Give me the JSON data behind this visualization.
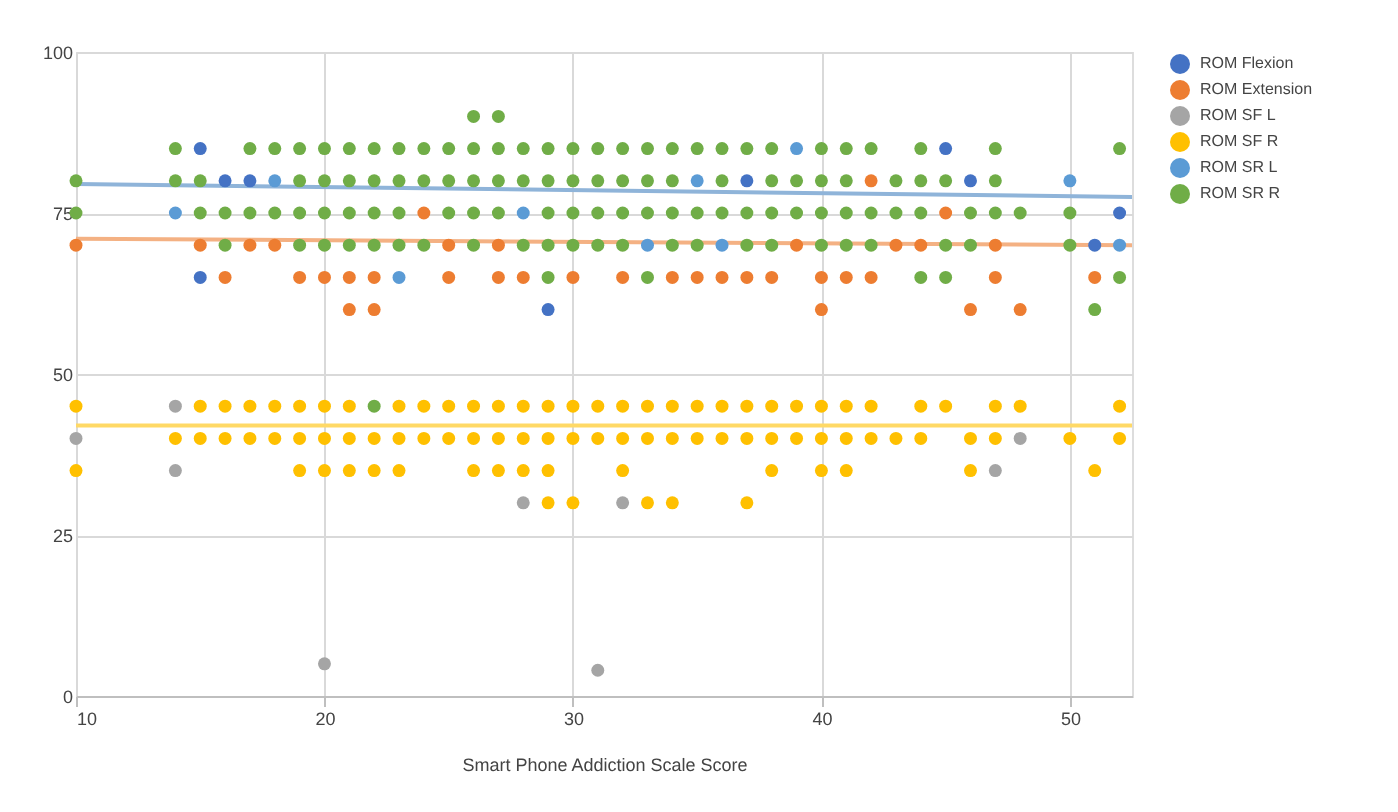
{
  "chart_data": {
    "type": "scatter",
    "xlabel": "Smart Phone Addiction Scale Score",
    "xlim": [
      10,
      52.5
    ],
    "xticks": [
      10,
      20,
      30,
      40,
      50
    ],
    "ylim": [
      0,
      100
    ],
    "yticks": [
      0,
      25,
      50,
      75,
      100
    ],
    "grid": true,
    "legend": "top right",
    "marker": "circle",
    "series": [
      {
        "name": "ROM Flexion",
        "color": "#4472c4",
        "x": [
          15,
          16,
          17,
          15,
          29,
          45,
          37,
          46,
          52,
          51
        ],
        "values": [
          85,
          80,
          80,
          65,
          60,
          85,
          80,
          80,
          75,
          70
        ]
      },
      {
        "name": "ROM Extension",
        "color": "#ed7d31",
        "x": [
          10,
          24,
          15,
          17,
          18,
          25,
          27,
          16,
          19,
          20,
          21,
          22,
          25,
          27,
          28,
          30,
          32,
          34,
          35,
          21,
          22,
          42,
          45,
          39,
          43,
          44,
          47,
          36,
          37,
          38,
          40,
          41,
          42,
          47,
          51,
          40,
          46,
          48
        ],
        "values": [
          70,
          75,
          70,
          70,
          70,
          70,
          70,
          65,
          65,
          65,
          65,
          65,
          65,
          65,
          65,
          65,
          65,
          65,
          65,
          60,
          60,
          80,
          75,
          70,
          70,
          70,
          70,
          65,
          65,
          65,
          65,
          65,
          65,
          65,
          65,
          60,
          60,
          60
        ]
      },
      {
        "name": "ROM SF L",
        "color": "#a5a5a5",
        "x": [
          14,
          10,
          14,
          28,
          32,
          20,
          31,
          48,
          47
        ],
        "values": [
          45,
          40,
          35,
          30,
          30,
          5,
          4,
          40,
          35
        ]
      },
      {
        "name": "ROM SF R",
        "color": "#ffc000",
        "x": [
          10,
          15,
          16,
          17,
          18,
          19,
          20,
          21,
          23,
          24,
          25,
          26,
          27,
          28,
          29,
          30,
          31,
          32,
          33,
          34,
          35,
          36,
          37,
          38,
          39,
          40,
          41,
          42,
          44,
          45,
          47,
          48,
          52,
          14,
          15,
          16,
          17,
          18,
          19,
          20,
          21,
          22,
          23,
          24,
          25,
          26,
          27,
          28,
          29,
          30,
          31,
          32,
          33,
          34,
          35,
          36,
          37,
          38,
          39,
          40,
          41,
          42,
          43,
          44,
          46,
          47,
          50,
          52,
          10,
          19,
          20,
          21,
          22,
          23,
          26,
          27,
          28,
          29,
          32,
          38,
          40,
          41,
          46,
          51,
          29,
          30,
          33,
          34,
          37
        ],
        "values": [
          45,
          45,
          45,
          45,
          45,
          45,
          45,
          45,
          45,
          45,
          45,
          45,
          45,
          45,
          45,
          45,
          45,
          45,
          45,
          45,
          45,
          45,
          45,
          45,
          45,
          45,
          45,
          45,
          45,
          45,
          45,
          45,
          45,
          40,
          40,
          40,
          40,
          40,
          40,
          40,
          40,
          40,
          40,
          40,
          40,
          40,
          40,
          40,
          40,
          40,
          40,
          40,
          40,
          40,
          40,
          40,
          40,
          40,
          40,
          40,
          40,
          40,
          40,
          40,
          40,
          40,
          40,
          40,
          35,
          35,
          35,
          35,
          35,
          35,
          35,
          35,
          35,
          35,
          35,
          35,
          35,
          35,
          35,
          35,
          30,
          30,
          30,
          30,
          30
        ]
      },
      {
        "name": "ROM SR L",
        "color": "#5b9bd5",
        "x": [
          18,
          35,
          50,
          14,
          28,
          33,
          23,
          39,
          36,
          52
        ],
        "values": [
          80,
          80,
          80,
          75,
          75,
          70,
          65,
          85,
          70,
          70
        ]
      },
      {
        "name": "ROM SR R",
        "color": "#70ad47",
        "x": [
          26,
          27,
          14,
          17,
          18,
          19,
          20,
          21,
          22,
          23,
          24,
          25,
          26,
          27,
          28,
          29,
          30,
          31,
          32,
          33,
          34,
          35,
          36,
          37,
          38,
          40,
          41,
          42,
          44,
          47,
          52,
          10,
          14,
          15,
          19,
          20,
          21,
          22,
          23,
          24,
          25,
          26,
          27,
          28,
          29,
          30,
          31,
          32,
          33,
          34,
          36,
          38,
          39,
          40,
          41,
          43,
          44,
          45,
          47,
          10,
          15,
          16,
          17,
          18,
          19,
          20,
          21,
          22,
          23,
          25,
          26,
          27,
          29,
          30,
          31,
          32,
          33,
          34,
          35,
          36,
          37,
          38,
          39,
          40,
          41,
          42,
          43,
          44,
          46,
          47,
          48,
          50,
          16,
          19,
          20,
          21,
          22,
          23,
          24,
          26,
          28,
          29,
          30,
          31,
          32,
          34,
          35,
          37,
          38,
          40,
          41,
          42,
          45,
          46,
          50,
          29,
          33,
          44,
          45,
          52,
          51,
          22
        ],
        "values": [
          90,
          90,
          85,
          85,
          85,
          85,
          85,
          85,
          85,
          85,
          85,
          85,
          85,
          85,
          85,
          85,
          85,
          85,
          85,
          85,
          85,
          85,
          85,
          85,
          85,
          85,
          85,
          85,
          85,
          85,
          85,
          80,
          80,
          80,
          80,
          80,
          80,
          80,
          80,
          80,
          80,
          80,
          80,
          80,
          80,
          80,
          80,
          80,
          80,
          80,
          80,
          80,
          80,
          80,
          80,
          80,
          80,
          80,
          80,
          75,
          75,
          75,
          75,
          75,
          75,
          75,
          75,
          75,
          75,
          75,
          75,
          75,
          75,
          75,
          75,
          75,
          75,
          75,
          75,
          75,
          75,
          75,
          75,
          75,
          75,
          75,
          75,
          75,
          75,
          75,
          75,
          75,
          70,
          70,
          70,
          70,
          70,
          70,
          70,
          70,
          70,
          70,
          70,
          70,
          70,
          70,
          70,
          70,
          70,
          70,
          70,
          70,
          70,
          70,
          70,
          65,
          65,
          65,
          65,
          65,
          60,
          45
        ]
      },
      {
        "type": "line",
        "marker": "none",
        "color": "#8fb4d9",
        "x": [
          10,
          52.5
        ],
        "values": [
          79.5,
          77.5
        ]
      },
      {
        "type": "line",
        "marker": "none",
        "color": "#f4b183",
        "x": [
          10,
          52.5
        ],
        "values": [
          71,
          70
        ]
      },
      {
        "type": "line",
        "marker": "none",
        "color": "#ffd966",
        "x": [
          10,
          52.5
        ],
        "values": [
          42,
          42
        ]
      }
    ]
  }
}
